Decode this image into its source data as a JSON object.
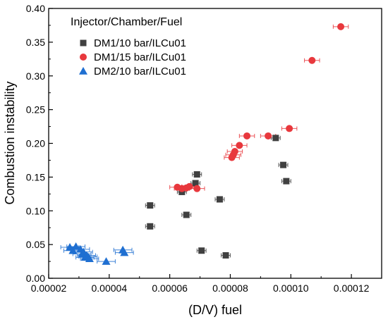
{
  "chart_data": {
    "type": "scatter",
    "title": "",
    "xlabel": "(D/V) fuel",
    "ylabel": "Combustion instability",
    "xlim": [
      2e-05,
      0.00013
    ],
    "ylim": [
      0.0,
      0.4
    ],
    "x_ticks": [
      {
        "value": 2e-05,
        "label": "0.00002"
      },
      {
        "value": 4e-05,
        "label": "0.00004"
      },
      {
        "value": 6e-05,
        "label": "0.00006"
      },
      {
        "value": 8e-05,
        "label": "0.00008"
      },
      {
        "value": 0.0001,
        "label": "0.00010"
      },
      {
        "value": 0.00012,
        "label": "0.00012"
      }
    ],
    "y_ticks": [
      {
        "value": 0.0,
        "label": "0.00"
      },
      {
        "value": 0.05,
        "label": "0.05"
      },
      {
        "value": 0.1,
        "label": "0.10"
      },
      {
        "value": 0.15,
        "label": "0.15"
      },
      {
        "value": 0.2,
        "label": "0.20"
      },
      {
        "value": 0.25,
        "label": "0.25"
      },
      {
        "value": 0.3,
        "label": "0.30"
      },
      {
        "value": 0.35,
        "label": "0.35"
      },
      {
        "value": 0.4,
        "label": "0.40"
      }
    ],
    "grid": false,
    "legend": {
      "title": "Injector/Chamber/Fuel",
      "position": "top-left"
    },
    "series": [
      {
        "name": "DM1/10 bar/ILCu01",
        "marker": "square",
        "color": "#404040",
        "xerr": 1.5e-06,
        "points": [
          [
            5.35e-05,
            0.108
          ],
          [
            5.35e-05,
            0.077
          ],
          [
            6.4e-05,
            0.128
          ],
          [
            6.55e-05,
            0.094
          ],
          [
            6.85e-05,
            0.141
          ],
          [
            6.9e-05,
            0.154
          ],
          [
            7.05e-05,
            0.041
          ],
          [
            7.65e-05,
            0.117
          ],
          [
            7.85e-05,
            0.034
          ],
          [
            9.5e-05,
            0.208
          ],
          [
            9.75e-05,
            0.168
          ],
          [
            9.85e-05,
            0.144
          ]
        ]
      },
      {
        "name": "DM1/15 bar/ILCu01",
        "marker": "circle",
        "color": "#e8383d",
        "xerr": 2.5e-06,
        "points": [
          [
            6.25e-05,
            0.135
          ],
          [
            6.4e-05,
            0.133
          ],
          [
            6.55e-05,
            0.134
          ],
          [
            6.65e-05,
            0.136
          ],
          [
            6.9e-05,
            0.133
          ],
          [
            8.05e-05,
            0.179
          ],
          [
            8.1e-05,
            0.183
          ],
          [
            8.15e-05,
            0.188
          ],
          [
            8.3e-05,
            0.197
          ],
          [
            8.55e-05,
            0.211
          ],
          [
            9.25e-05,
            0.211
          ],
          [
            9.95e-05,
            0.222
          ],
          [
            0.000107,
            0.323
          ],
          [
            0.0001165,
            0.373
          ]
        ]
      },
      {
        "name": "DM2/10 bar/ILCu01",
        "marker": "triangle",
        "color": "#1f6fd1",
        "xerr": 3e-06,
        "points": [
          [
            2.7e-05,
            0.046
          ],
          [
            2.8e-05,
            0.041
          ],
          [
            2.9e-05,
            0.047
          ],
          [
            3.05e-05,
            0.043
          ],
          [
            3.1e-05,
            0.036
          ],
          [
            3.15e-05,
            0.039
          ],
          [
            3.2e-05,
            0.031
          ],
          [
            3.25e-05,
            0.034
          ],
          [
            3.3e-05,
            0.032
          ],
          [
            3.35e-05,
            0.029
          ],
          [
            3.9e-05,
            0.025
          ],
          [
            4.45e-05,
            0.042
          ],
          [
            4.5e-05,
            0.038
          ]
        ]
      }
    ]
  }
}
